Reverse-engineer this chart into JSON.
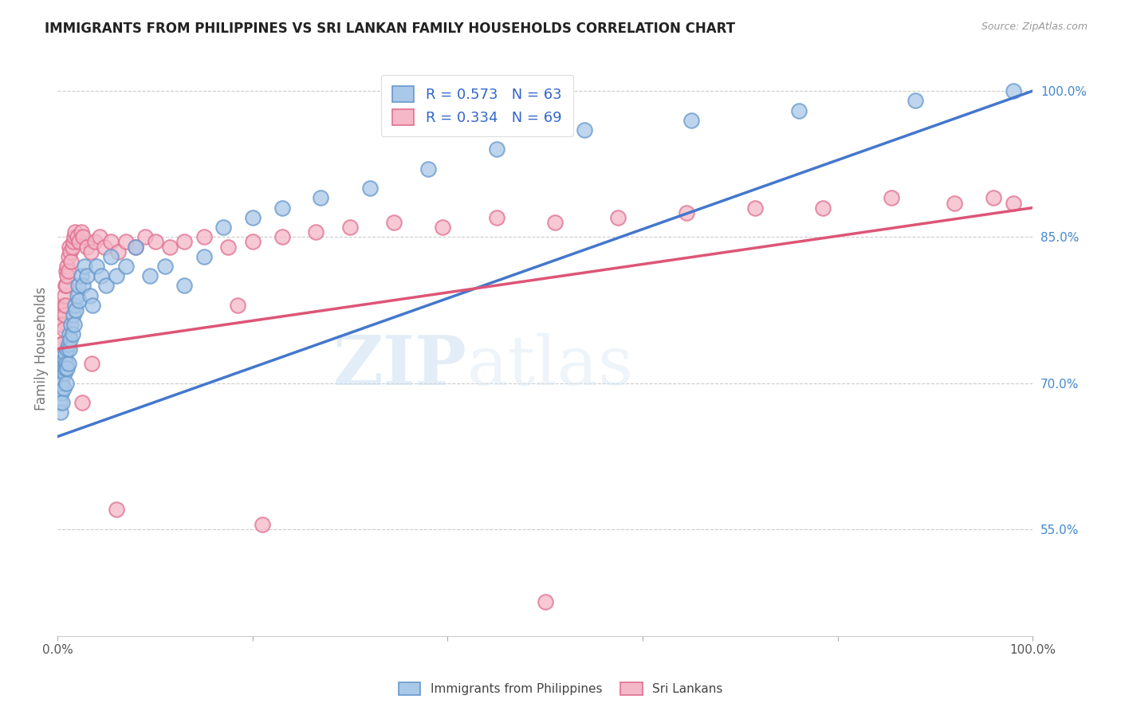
{
  "title": "IMMIGRANTS FROM PHILIPPINES VS SRI LANKAN FAMILY HOUSEHOLDS CORRELATION CHART",
  "source": "Source: ZipAtlas.com",
  "ylabel": "Family Households",
  "ylabel_right_ticks": [
    "55.0%",
    "70.0%",
    "85.0%",
    "100.0%"
  ],
  "ylabel_right_vals": [
    0.55,
    0.7,
    0.85,
    1.0
  ],
  "xmin": 0.0,
  "xmax": 1.0,
  "ymin": 0.44,
  "ymax": 1.03,
  "blue_color": "#aac8e8",
  "pink_color": "#f4b8c8",
  "blue_edge_color": "#6699cc",
  "pink_edge_color": "#e07090",
  "blue_line_color": "#4477cc",
  "pink_line_color": "#dd5577",
  "blue_R": 0.573,
  "blue_N": 63,
  "pink_R": 0.334,
  "pink_N": 69,
  "watermark_zip": "ZIP",
  "watermark_atlas": "atlas",
  "blue_scatter_x": [
    0.001,
    0.002,
    0.002,
    0.003,
    0.003,
    0.004,
    0.004,
    0.005,
    0.005,
    0.005,
    0.006,
    0.006,
    0.007,
    0.007,
    0.008,
    0.008,
    0.009,
    0.009,
    0.01,
    0.01,
    0.011,
    0.011,
    0.012,
    0.012,
    0.013,
    0.014,
    0.015,
    0.016,
    0.017,
    0.018,
    0.019,
    0.02,
    0.021,
    0.022,
    0.024,
    0.026,
    0.028,
    0.03,
    0.033,
    0.036,
    0.04,
    0.045,
    0.05,
    0.055,
    0.06,
    0.07,
    0.08,
    0.095,
    0.11,
    0.13,
    0.15,
    0.17,
    0.2,
    0.23,
    0.27,
    0.32,
    0.38,
    0.45,
    0.54,
    0.65,
    0.76,
    0.88,
    0.98
  ],
  "blue_scatter_y": [
    0.695,
    0.68,
    0.71,
    0.67,
    0.7,
    0.715,
    0.69,
    0.72,
    0.7,
    0.68,
    0.715,
    0.695,
    0.725,
    0.71,
    0.73,
    0.715,
    0.72,
    0.7,
    0.735,
    0.715,
    0.74,
    0.72,
    0.735,
    0.75,
    0.745,
    0.76,
    0.75,
    0.77,
    0.76,
    0.78,
    0.775,
    0.79,
    0.8,
    0.785,
    0.81,
    0.8,
    0.82,
    0.81,
    0.79,
    0.78,
    0.82,
    0.81,
    0.8,
    0.83,
    0.81,
    0.82,
    0.84,
    0.81,
    0.82,
    0.8,
    0.83,
    0.86,
    0.87,
    0.88,
    0.89,
    0.9,
    0.92,
    0.94,
    0.96,
    0.97,
    0.98,
    0.99,
    1.0
  ],
  "pink_scatter_x": [
    0.001,
    0.002,
    0.002,
    0.003,
    0.003,
    0.004,
    0.004,
    0.005,
    0.005,
    0.006,
    0.006,
    0.007,
    0.007,
    0.008,
    0.008,
    0.009,
    0.009,
    0.01,
    0.01,
    0.011,
    0.011,
    0.012,
    0.013,
    0.014,
    0.015,
    0.016,
    0.017,
    0.018,
    0.02,
    0.022,
    0.024,
    0.026,
    0.03,
    0.034,
    0.038,
    0.043,
    0.048,
    0.055,
    0.062,
    0.07,
    0.08,
    0.09,
    0.1,
    0.115,
    0.13,
    0.15,
    0.175,
    0.2,
    0.23,
    0.265,
    0.3,
    0.345,
    0.395,
    0.45,
    0.51,
    0.575,
    0.645,
    0.715,
    0.785,
    0.855,
    0.92,
    0.96,
    0.98,
    0.185,
    0.035,
    0.5,
    0.21,
    0.06,
    0.025
  ],
  "pink_scatter_y": [
    0.72,
    0.695,
    0.74,
    0.71,
    0.76,
    0.74,
    0.72,
    0.76,
    0.775,
    0.78,
    0.755,
    0.79,
    0.77,
    0.8,
    0.78,
    0.815,
    0.8,
    0.82,
    0.81,
    0.83,
    0.815,
    0.84,
    0.835,
    0.825,
    0.84,
    0.845,
    0.85,
    0.855,
    0.85,
    0.845,
    0.855,
    0.85,
    0.84,
    0.835,
    0.845,
    0.85,
    0.84,
    0.845,
    0.835,
    0.845,
    0.84,
    0.85,
    0.845,
    0.84,
    0.845,
    0.85,
    0.84,
    0.845,
    0.85,
    0.855,
    0.86,
    0.865,
    0.86,
    0.87,
    0.865,
    0.87,
    0.875,
    0.88,
    0.88,
    0.89,
    0.885,
    0.89,
    0.885,
    0.78,
    0.72,
    0.475,
    0.555,
    0.57,
    0.68
  ]
}
